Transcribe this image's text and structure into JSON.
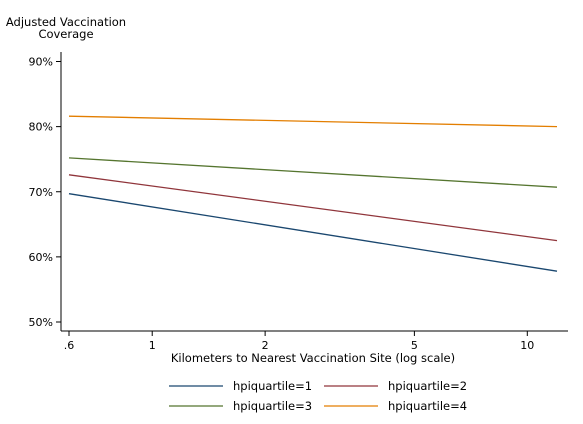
{
  "chart_data": {
    "type": "line",
    "ylabel_lines": [
      "Adjusted Vaccination",
      "Coverage"
    ],
    "xlabel": "Kilometers to Nearest Vaccination Site (log scale)",
    "x_scale": "log",
    "xlim": [
      0.6,
      12
    ],
    "ylim": [
      49,
      92
    ],
    "x_ticks": [
      0.6,
      1,
      2,
      5,
      10
    ],
    "x_tick_labels": [
      ".6",
      "1",
      "2",
      "5",
      "10"
    ],
    "y_ticks": [
      50,
      60,
      70,
      80,
      90
    ],
    "y_tick_labels": [
      "50%",
      "60%",
      "70%",
      "80%",
      "90%"
    ],
    "grid": false,
    "legend_position": "bottom",
    "series": [
      {
        "name": "hpiquartile=1",
        "color": "#1a476f",
        "x": [
          0.6,
          12
        ],
        "y": [
          69.7,
          57.8
        ]
      },
      {
        "name": "hpiquartile=2",
        "color": "#90353b",
        "x": [
          0.6,
          12
        ],
        "y": [
          72.6,
          62.5
        ]
      },
      {
        "name": "hpiquartile=3",
        "color": "#55752f",
        "x": [
          0.6,
          12
        ],
        "y": [
          75.2,
          70.7
        ]
      },
      {
        "name": "hpiquartile=4",
        "color": "#e37e00",
        "x": [
          0.6,
          12
        ],
        "y": [
          81.6,
          80.0
        ]
      }
    ]
  }
}
